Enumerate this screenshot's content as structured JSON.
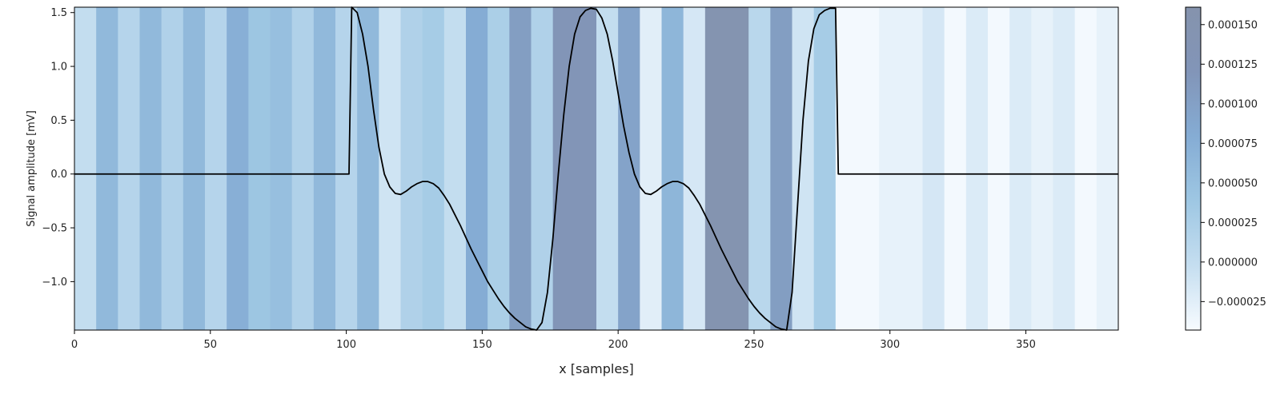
{
  "chart_data": {
    "type": "line",
    "xlabel": "x [samples]",
    "ylabel": "Signal amplitude [mV]",
    "xlim": [
      0,
      384
    ],
    "ylim": [
      -1.45,
      1.55
    ],
    "x_ticks": [
      0,
      50,
      100,
      150,
      200,
      250,
      300,
      350
    ],
    "y_ticks": [
      -1.0,
      -0.5,
      0.0,
      0.5,
      1.0,
      1.5
    ],
    "y_tick_labels": [
      "−1.0",
      "−0.5",
      "0.0",
      "0.5",
      "1.0",
      "1.5"
    ],
    "series": [
      {
        "color": "#000000",
        "x": [
          0,
          101,
          102,
          104,
          106,
          108,
          110,
          112,
          114,
          116,
          118,
          120,
          122,
          124,
          126,
          128,
          130,
          132,
          134,
          136,
          138,
          140,
          142,
          144,
          146,
          148,
          150,
          152,
          154,
          156,
          158,
          160,
          162,
          164,
          166,
          168,
          170,
          172,
          174,
          176,
          178,
          180,
          182,
          184,
          186,
          188,
          190,
          192,
          194,
          196,
          198,
          200,
          202,
          204,
          206,
          208,
          210,
          212,
          214,
          216,
          218,
          220,
          222,
          224,
          226,
          228,
          230,
          232,
          234,
          236,
          238,
          240,
          242,
          244,
          246,
          248,
          250,
          252,
          254,
          256,
          258,
          260,
          262,
          264,
          266,
          268,
          270,
          272,
          274,
          276,
          278,
          280,
          281,
          384
        ],
        "y": [
          0.0,
          0.0,
          1.55,
          1.5,
          1.3,
          1.0,
          0.6,
          0.25,
          0.0,
          -0.12,
          -0.18,
          -0.19,
          -0.16,
          -0.12,
          -0.09,
          -0.07,
          -0.07,
          -0.09,
          -0.13,
          -0.2,
          -0.28,
          -0.38,
          -0.48,
          -0.59,
          -0.7,
          -0.8,
          -0.9,
          -1.0,
          -1.08,
          -1.16,
          -1.23,
          -1.29,
          -1.34,
          -1.38,
          -1.42,
          -1.44,
          -1.45,
          -1.38,
          -1.1,
          -0.6,
          0.0,
          0.55,
          1.0,
          1.3,
          1.46,
          1.52,
          1.54,
          1.53,
          1.45,
          1.3,
          1.05,
          0.75,
          0.45,
          0.2,
          0.0,
          -0.12,
          -0.18,
          -0.19,
          -0.16,
          -0.12,
          -0.09,
          -0.07,
          -0.07,
          -0.09,
          -0.13,
          -0.2,
          -0.28,
          -0.38,
          -0.48,
          -0.59,
          -0.7,
          -0.8,
          -0.9,
          -1.0,
          -1.08,
          -1.16,
          -1.23,
          -1.29,
          -1.34,
          -1.38,
          -1.42,
          -1.44,
          -1.45,
          -1.1,
          -0.3,
          0.5,
          1.05,
          1.35,
          1.48,
          1.52,
          1.54,
          1.54,
          0.0,
          0.0
        ]
      }
    ],
    "heatmap_bands": {
      "band_width": 8,
      "values": [
        0.0,
        6e-05,
        1.5e-05,
        6e-05,
        2e-05,
        6e-05,
        1.5e-05,
        7.5e-05,
        4e-05,
        5e-05,
        2e-05,
        6e-05,
        1.5e-05,
        6e-05,
        -1e-05,
        2e-05,
        3e-05,
        0.0,
        8e-05,
        2.5e-05,
        0.000105,
        2e-05,
        0.000125,
        0.000125,
        0.0,
        9.5e-05,
        -2.5e-05,
        6.5e-05,
        -1.5e-05,
        0.00015,
        0.00015,
        1e-05,
        0.000105,
        -1e-05,
        3e-05,
        -4e-05,
        -4e-05,
        -3e-05,
        -3e-05,
        -1.5e-05,
        -4e-05,
        -2e-05,
        -4e-05,
        -2e-05,
        -3e-05,
        -2e-05,
        -4e-05,
        -3e-05
      ]
    },
    "colorbar": {
      "range": [
        -4.3e-05,
        0.000161
      ],
      "ticks": [
        -2.5e-05,
        0.0,
        2.5e-05,
        5e-05,
        7.5e-05,
        0.0001,
        0.000125,
        0.00015
      ],
      "tick_labels": [
        "−0.000025",
        "0.000000",
        "0.000025",
        "0.000050",
        "0.000075",
        "0.000100",
        "0.000125",
        "0.000150"
      ],
      "colors": [
        "#f7fbff",
        "#c5def0",
        "#9ec7e3",
        "#85acd4",
        "#8295b8",
        "#8593ad"
      ]
    },
    "grid": false,
    "legend": "none"
  }
}
